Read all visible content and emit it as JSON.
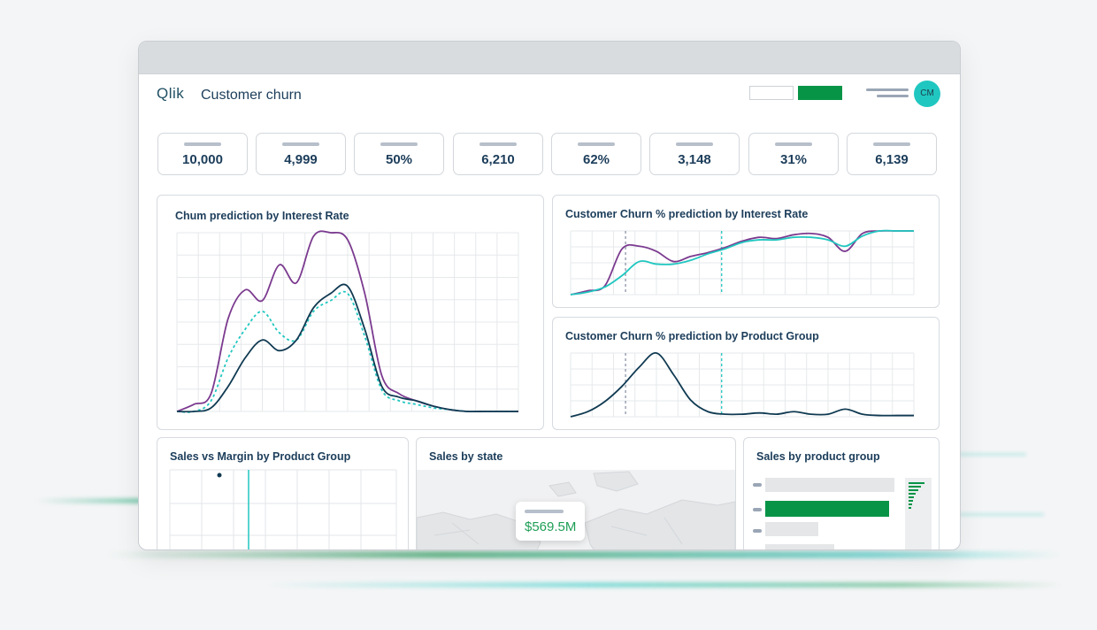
{
  "app": {
    "logo": "Qlik",
    "title": "Customer churn",
    "avatar_initials": "CM"
  },
  "colors": {
    "accent_green": "#079447",
    "teal": "#20c7c0",
    "purple": "#7b3a8f",
    "navy": "#103a52"
  },
  "kpis": [
    "10,000",
    "4,999",
    "50%",
    "6,210",
    "62%",
    "3,148",
    "31%",
    "6,139"
  ],
  "charts": {
    "churn_interest": {
      "title": "Chum prediction by Interest Rate"
    },
    "churn_pct_interest": {
      "title": "Customer Churn % prediction by Interest Rate"
    },
    "churn_pct_product": {
      "title": "Customer Churn % prediction by Product Group"
    },
    "sales_margin": {
      "title": "Sales vs Margin by Product Group"
    },
    "sales_state": {
      "title": "Sales by state",
      "tooltip_value": "$569.5M"
    },
    "sales_product": {
      "title": "Sales by product group"
    }
  },
  "chart_data": [
    {
      "type": "line",
      "title": "Chum prediction by Interest Rate",
      "x": [
        0,
        1,
        2,
        3,
        4,
        5,
        6,
        7,
        8,
        9,
        10,
        11,
        12,
        13,
        14,
        15,
        16,
        17,
        18,
        19,
        20
      ],
      "series": [
        {
          "color": "#7b3a8f",
          "values": [
            0,
            4,
            10,
            52,
            68,
            62,
            82,
            72,
            98,
            100,
            96,
            66,
            20,
            10,
            6,
            3,
            1,
            0,
            0,
            0,
            0
          ]
        },
        {
          "color": "#20c7c0",
          "dashed": true,
          "values": [
            0,
            0,
            6,
            30,
            46,
            56,
            44,
            40,
            56,
            62,
            66,
            42,
            12,
            6,
            4,
            2,
            1,
            0,
            0,
            0,
            0
          ]
        },
        {
          "color": "#103a52",
          "values": [
            0,
            0,
            2,
            14,
            30,
            40,
            34,
            40,
            58,
            66,
            70,
            46,
            14,
            8,
            6,
            3,
            1,
            0,
            0,
            0,
            0
          ]
        }
      ]
    },
    {
      "type": "line",
      "title": "Customer Churn % prediction by Interest Rate",
      "x": [
        0,
        1,
        2,
        3,
        4,
        5,
        6,
        7,
        8,
        9,
        10,
        11,
        12,
        13,
        14,
        15,
        16,
        17,
        18,
        19,
        20
      ],
      "series": [
        {
          "color": "#7b3a8f",
          "values": [
            0,
            6,
            14,
            72,
            76,
            68,
            52,
            60,
            66,
            74,
            84,
            90,
            88,
            94,
            96,
            90,
            68,
            96,
            100,
            100,
            100
          ]
        },
        {
          "color": "#20c7c0",
          "values": [
            0,
            4,
            12,
            30,
            52,
            48,
            48,
            54,
            64,
            72,
            82,
            86,
            86,
            90,
            90,
            86,
            76,
            92,
            100,
            100,
            100
          ]
        }
      ]
    },
    {
      "type": "line",
      "title": "Customer Churn % prediction by Product Group",
      "x": [
        0,
        1,
        2,
        3,
        4,
        5,
        6,
        7,
        8,
        9,
        10,
        11,
        12,
        13,
        14,
        15,
        16,
        17,
        18,
        19,
        20
      ],
      "series": [
        {
          "color": "#103a52",
          "values": [
            0,
            8,
            24,
            48,
            78,
            100,
            66,
            26,
            8,
            4,
            4,
            6,
            4,
            8,
            4,
            4,
            12,
            4,
            2,
            2,
            2
          ]
        }
      ]
    }
  ]
}
